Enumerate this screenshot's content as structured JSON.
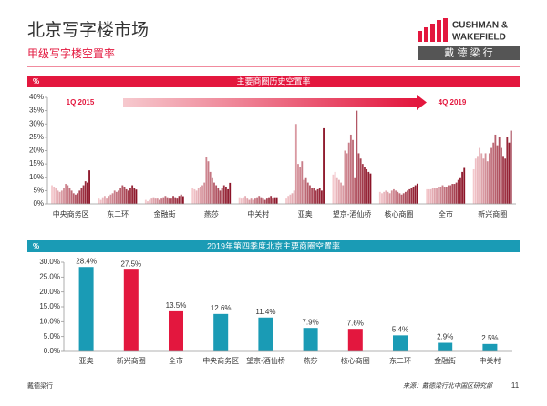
{
  "header": {
    "title": "北京写字楼市场",
    "subtitle": "甲级写字楼空置率",
    "logo_line1": "CUSHMAN &",
    "logo_line2": "WAKEFIELD",
    "logo_cn": "戴 德 梁 行"
  },
  "footer": {
    "left": "戴德梁行",
    "source": "来源：戴德梁行北中国区研究部",
    "page": "11"
  },
  "chart_data": [
    {
      "type": "grouped-bar",
      "title": "主要商圈历史空置率",
      "unit": "%",
      "banner_color": "#e3173e",
      "annotations": [
        "1Q 2015",
        "4Q 2019"
      ],
      "color_gradient": [
        "#f4c9cd",
        "#8c1428"
      ],
      "groups": [
        {
          "name": "中央商务区",
          "values": [
            7,
            6.5,
            6,
            5,
            4.5,
            5,
            6,
            7.5,
            7,
            6,
            5,
            4,
            3.5,
            4,
            5,
            6,
            7,
            8.5,
            8,
            12.6
          ]
        },
        {
          "name": "东二环",
          "values": [
            2,
            1.5,
            2.5,
            3,
            2,
            3,
            3.5,
            4,
            5,
            4.5,
            5,
            6,
            7,
            6.5,
            5.5,
            5,
            6,
            7,
            6,
            5.4
          ]
        },
        {
          "name": "金融街",
          "values": [
            1.5,
            1,
            1.5,
            2,
            2.5,
            2,
            2,
            1.5,
            2,
            2.5,
            3,
            2.5,
            2,
            2,
            3,
            2.5,
            2,
            3,
            3.5,
            2.9
          ]
        },
        {
          "name": "燕莎",
          "values": [
            6,
            5.5,
            5,
            6,
            6.5,
            7,
            8,
            17.5,
            16,
            12,
            10,
            8,
            7,
            6,
            5,
            6,
            7,
            6.5,
            5.5,
            7.9
          ]
        },
        {
          "name": "中关村",
          "values": [
            2.5,
            2,
            2.5,
            3,
            2,
            1.5,
            2,
            1.5,
            2,
            2.5,
            3,
            2.5,
            2,
            1.5,
            2,
            2.5,
            3,
            2,
            2.5,
            2.5
          ]
        },
        {
          "name": "亚奥",
          "values": [
            2,
            3,
            3.5,
            4,
            5,
            30,
            15,
            14,
            16,
            9,
            10,
            8,
            7,
            6,
            6,
            5,
            5.5,
            6,
            5,
            28.4
          ]
        },
        {
          "name": "望京-酒仙桥",
          "values": [
            11,
            12,
            10,
            9,
            8,
            7,
            20,
            19,
            23,
            26,
            24,
            10,
            35,
            19,
            17,
            15,
            14,
            13,
            12,
            11.4
          ]
        },
        {
          "name": "核心商圈",
          "values": [
            4.5,
            4,
            4.5,
            5,
            4.5,
            4,
            5,
            5.5,
            5,
            4.5,
            4,
            3.5,
            4,
            4.5,
            5,
            5.5,
            6,
            6.5,
            7,
            7.6
          ]
        },
        {
          "name": "全市",
          "values": [
            5.5,
            5.5,
            5.5,
            6,
            6,
            6,
            6.5,
            6.5,
            7,
            6.5,
            6.5,
            7,
            7,
            7.5,
            7.5,
            8,
            9,
            10,
            12,
            13.5
          ]
        },
        {
          "name": "新兴商圈",
          "values": [
            13,
            17,
            18,
            21,
            19,
            17,
            19,
            16,
            19,
            21,
            23,
            26,
            22,
            25,
            21,
            18,
            17,
            25,
            23,
            27.5
          ]
        }
      ],
      "ylim": [
        0,
        40
      ],
      "yticks": [
        {
          "value": 0,
          "label": "0%"
        },
        {
          "value": 5,
          "label": "5%"
        },
        {
          "value": 10,
          "label": "10%"
        },
        {
          "value": 15,
          "label": "15%"
        },
        {
          "value": 20,
          "label": "20%"
        },
        {
          "value": 25,
          "label": "25%"
        },
        {
          "value": 30,
          "label": "30%"
        },
        {
          "value": 35,
          "label": "35%"
        },
        {
          "value": 40,
          "label": "40%"
        }
      ]
    },
    {
      "type": "bar",
      "title": "2019年第四季度北京主要商圈空置率",
      "unit": "%",
      "banner_color": "#1a9bb5",
      "categories": [
        "亚奥",
        "新兴商圈",
        "全市",
        "中央商务区",
        "望京-酒仙桥",
        "燕莎",
        "核心商圈",
        "东二环",
        "金融街",
        "中关村"
      ],
      "values": [
        28.4,
        27.5,
        13.5,
        12.6,
        11.4,
        7.9,
        7.6,
        5.4,
        2.9,
        2.5
      ],
      "value_labels": [
        "28.4%",
        "27.5%",
        "13.5%",
        "12.6%",
        "11.4%",
        "7.9%",
        "7.6%",
        "5.4%",
        "2.9%",
        "2.5%"
      ],
      "colors": [
        "#1a9bb5",
        "#e3173e",
        "#e3173e",
        "#1a9bb5",
        "#1a9bb5",
        "#1a9bb5",
        "#e3173e",
        "#1a9bb5",
        "#1a9bb5",
        "#1a9bb5"
      ],
      "ylim": [
        0,
        30
      ],
      "yticks": [
        {
          "value": 0,
          "label": "0.0%"
        },
        {
          "value": 5,
          "label": "5.0%"
        },
        {
          "value": 10,
          "label": "10.0%"
        },
        {
          "value": 15,
          "label": "15.0%"
        },
        {
          "value": 20,
          "label": "20.0%"
        },
        {
          "value": 25,
          "label": "25.0%"
        },
        {
          "value": 30,
          "label": "30.0%"
        }
      ]
    }
  ]
}
